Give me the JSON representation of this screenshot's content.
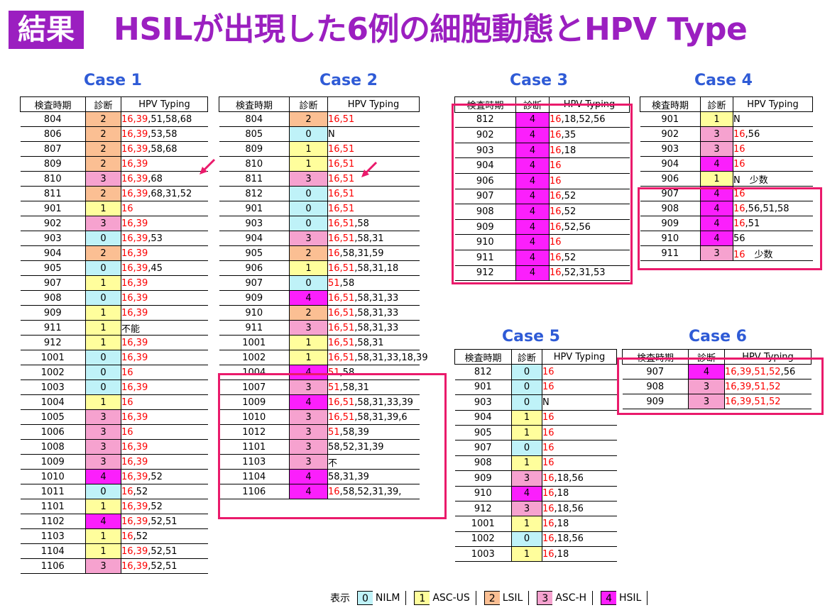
{
  "header": {
    "badge": "結果",
    "title": "HSILが出現した6例の細胞動態とHPV Type"
  },
  "colors": {
    "c0": "#bff2f8",
    "c1": "#fffe9c",
    "c2": "#fbbf93",
    "c3": "#f6a2cf",
    "c4": "#fb1ffc",
    "title": "#9b1fc0",
    "case_title": "#2f5bd6",
    "highlight": "#ea1a6b",
    "red_text": "#fb0000"
  },
  "columns": [
    "検査時期",
    "診断",
    "HPV Typing"
  ],
  "cases": [
    {
      "title": "Case 1",
      "rows": [
        [
          "804",
          "2",
          "16,39",
          ",51,58,68"
        ],
        [
          "806",
          "2",
          "16,39",
          ",53,58"
        ],
        [
          "807",
          "2",
          "16,39",
          ",58,68"
        ],
        [
          "809",
          "2",
          "16,39",
          ""
        ],
        [
          "810",
          "3",
          "16,39",
          ",68"
        ],
        [
          "811",
          "2",
          "16,39",
          ",68,31,52"
        ],
        [
          "901",
          "1",
          "16",
          ""
        ],
        [
          "902",
          "3",
          "16,39",
          ""
        ],
        [
          "903",
          "0",
          "16,39",
          ",53"
        ],
        [
          "904",
          "2",
          "16,39",
          ""
        ],
        [
          "905",
          "0",
          "16,39",
          ",45"
        ],
        [
          "907",
          "1",
          "16,39",
          ""
        ],
        [
          "908",
          "0",
          "16,39",
          ""
        ],
        [
          "909",
          "1",
          "16,39",
          ""
        ],
        [
          "911",
          "1",
          "",
          "不能"
        ],
        [
          "912",
          "1",
          "16,39",
          ""
        ],
        [
          "1001",
          "0",
          "16,39",
          ""
        ],
        [
          "1002",
          "0",
          "16",
          ""
        ],
        [
          "1003",
          "0",
          "16,39",
          ""
        ],
        [
          "1004",
          "1",
          "16",
          ""
        ],
        [
          "1005",
          "3",
          "16,39",
          ""
        ],
        [
          "1006",
          "3",
          "16",
          ""
        ],
        [
          "1008",
          "3",
          "16,39",
          ""
        ],
        [
          "1009",
          "3",
          "16,39",
          ""
        ],
        [
          "1010",
          "4",
          "16,39",
          ",52"
        ],
        [
          "1011",
          "0",
          "16",
          ",52"
        ],
        [
          "1101",
          "1",
          "16,39",
          ",52"
        ],
        [
          "1102",
          "4",
          "16,39",
          ",52,51"
        ],
        [
          "1103",
          "1",
          "16",
          ",52"
        ],
        [
          "1104",
          "1",
          "16,39",
          ",52,51"
        ],
        [
          "1106",
          "3",
          "16,39",
          ",52,51"
        ]
      ]
    },
    {
      "title": "Case 2",
      "rows": [
        [
          "804",
          "2",
          "16,51",
          ""
        ],
        [
          "805",
          "0",
          "",
          "N"
        ],
        [
          "809",
          "1",
          "16,51",
          ""
        ],
        [
          "810",
          "1",
          "16,51",
          ""
        ],
        [
          "811",
          "3",
          "16,51",
          ""
        ],
        [
          "812",
          "0",
          "16,51",
          ""
        ],
        [
          "901",
          "0",
          "16,51",
          ""
        ],
        [
          "903",
          "0",
          "16,51",
          ",58"
        ],
        [
          "904",
          "3",
          "16,51",
          ",58,31"
        ],
        [
          "905",
          "2",
          "16",
          ",58,31,59"
        ],
        [
          "906",
          "1",
          "16,51",
          ",58,31,18"
        ],
        [
          "907",
          "0",
          "51",
          ",58"
        ],
        [
          "909",
          "4",
          "16,51",
          ",58,31,33"
        ],
        [
          "910",
          "2",
          "16,51",
          ",58,31,33"
        ],
        [
          "911",
          "3",
          "16,51",
          ",58,31,33"
        ],
        [
          "1001",
          "1",
          "16,51",
          ",58,31"
        ],
        [
          "1002",
          "1",
          "16,51",
          ",58,31,33,18,39"
        ],
        [
          "1004",
          "4",
          "51",
          ",58"
        ],
        [
          "1007",
          "3",
          "51",
          ",58,31"
        ],
        [
          "1009",
          "4",
          "16,51",
          ",58,31,33,39"
        ],
        [
          "1010",
          "3",
          "16,51",
          ",58,31,39,6"
        ],
        [
          "1012",
          "3",
          "51",
          ",58,39"
        ],
        [
          "1101",
          "3",
          "",
          "58,52,31,39"
        ],
        [
          "1103",
          "3",
          "",
          "不"
        ],
        [
          "1104",
          "4",
          "",
          "58,31,39"
        ],
        [
          "1106",
          "4",
          "16",
          ",58,52,31,39,"
        ]
      ]
    },
    {
      "title": "Case 3",
      "rows": [
        [
          "812",
          "4",
          "16",
          ",18,52,56"
        ],
        [
          "902",
          "4",
          "16",
          ",35"
        ],
        [
          "903",
          "4",
          "16",
          ",18"
        ],
        [
          "904",
          "4",
          "16",
          ""
        ],
        [
          "906",
          "4",
          "16",
          ""
        ],
        [
          "907",
          "4",
          "16",
          ",52"
        ],
        [
          "908",
          "4",
          "16",
          ",52"
        ],
        [
          "909",
          "4",
          "16",
          ",52,56"
        ],
        [
          "910",
          "4",
          "16",
          ""
        ],
        [
          "911",
          "4",
          "16",
          ",52"
        ],
        [
          "912",
          "4",
          "16",
          ",52,31,53"
        ]
      ]
    },
    {
      "title": "Case 4",
      "rows": [
        [
          "901",
          "1",
          "",
          "N"
        ],
        [
          "902",
          "3",
          "16",
          ",56"
        ],
        [
          "903",
          "3",
          "16",
          ""
        ],
        [
          "904",
          "4",
          "16",
          ""
        ],
        [
          "906",
          "1",
          "",
          "N　少数"
        ],
        [
          "907",
          "4",
          "16",
          ""
        ],
        [
          "908",
          "4",
          "16",
          ",56,51,58"
        ],
        [
          "909",
          "4",
          "16",
          ",51"
        ],
        [
          "910",
          "4",
          "",
          "56"
        ],
        [
          "911",
          "3",
          "16",
          "　少数"
        ]
      ]
    },
    {
      "title": "Case 5",
      "rows": [
        [
          "812",
          "0",
          "16",
          ""
        ],
        [
          "901",
          "0",
          "16",
          ""
        ],
        [
          "903",
          "0",
          "",
          "N"
        ],
        [
          "904",
          "1",
          "16",
          ""
        ],
        [
          "905",
          "1",
          "16",
          ""
        ],
        [
          "907",
          "0",
          "16",
          ""
        ],
        [
          "908",
          "1",
          "16",
          ""
        ],
        [
          "909",
          "3",
          "16",
          ",18,56"
        ],
        [
          "910",
          "4",
          "16",
          ",18"
        ],
        [
          "912",
          "3",
          "16",
          ",18,56"
        ],
        [
          "1001",
          "1",
          "16",
          ",18"
        ],
        [
          "1002",
          "0",
          "16",
          ",18,56"
        ],
        [
          "1003",
          "1",
          "16",
          ",18"
        ]
      ]
    },
    {
      "title": "Case 6",
      "rows": [
        [
          "907",
          "4",
          "16,39,51,52",
          ",56"
        ],
        [
          "908",
          "3",
          "16,39,51,52",
          ""
        ],
        [
          "909",
          "3",
          "16,39,51,52",
          ""
        ]
      ]
    }
  ],
  "legend": {
    "label": "表示",
    "items": [
      {
        "code": "0",
        "name": "NILM"
      },
      {
        "code": "1",
        "name": "ASC-US"
      },
      {
        "code": "2",
        "name": "LSIL"
      },
      {
        "code": "3",
        "name": "ASC-H"
      },
      {
        "code": "4",
        "name": "HSIL"
      }
    ]
  }
}
